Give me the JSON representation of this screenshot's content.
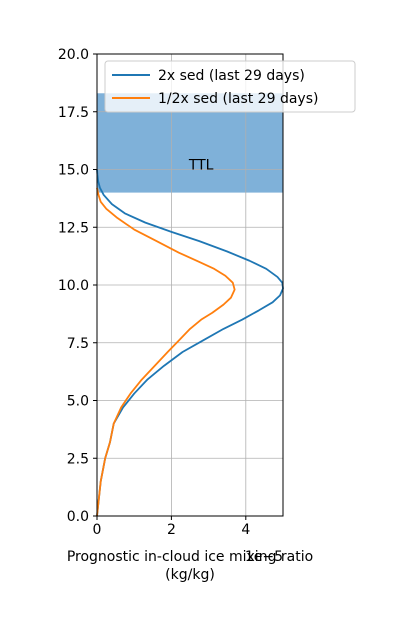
{
  "chart_data": {
    "type": "line",
    "xlabel": "Prognostic in-cloud ice mixing ratio\n(kg/kg)",
    "ylabel": "",
    "x_offset_label": "1e−5",
    "xlim": [
      0,
      5
    ],
    "ylim": [
      0,
      20
    ],
    "xticks": [
      0,
      2,
      4
    ],
    "yticks": [
      0.0,
      2.5,
      5.0,
      7.5,
      10.0,
      12.5,
      15.0,
      17.5,
      20.0
    ],
    "xtick_labels": [
      "0",
      "2",
      "4"
    ],
    "ytick_labels": [
      "0.0",
      "2.5",
      "5.0",
      "7.5",
      "10.0",
      "12.5",
      "15.0",
      "17.5",
      "20.0"
    ],
    "grid": true,
    "legend_position": "top-right",
    "shaded_region": {
      "label": "TTL",
      "y_range": [
        14.0,
        18.3
      ],
      "color": "#7fb1d9"
    },
    "series": [
      {
        "name": "2x sed (last 29 days)",
        "color": "#1f77b4",
        "x": [
          0.0,
          0.1,
          0.22,
          0.35,
          0.45,
          0.7,
          1.0,
          1.35,
          1.8,
          2.3,
          2.85,
          3.4,
          3.9,
          4.35,
          4.72,
          4.92,
          5.0,
          4.98,
          4.85,
          4.55,
          4.1,
          3.5,
          2.75,
          2.0,
          1.3,
          0.75,
          0.4,
          0.18,
          0.08,
          0.03,
          0.01,
          0.0
        ],
        "y": [
          0.0,
          1.5,
          2.5,
          3.2,
          4.0,
          4.7,
          5.3,
          5.9,
          6.5,
          7.1,
          7.6,
          8.1,
          8.5,
          8.9,
          9.25,
          9.55,
          9.85,
          10.1,
          10.35,
          10.7,
          11.05,
          11.45,
          11.9,
          12.3,
          12.7,
          13.1,
          13.5,
          13.9,
          14.2,
          14.5,
          14.8,
          15.0
        ]
      },
      {
        "name": "1/2x sed (last 29 days)",
        "color": "#ff7f0e",
        "x": [
          0.0,
          0.1,
          0.22,
          0.35,
          0.45,
          0.65,
          0.9,
          1.2,
          1.55,
          1.9,
          2.2,
          2.5,
          2.8,
          3.1,
          3.4,
          3.6,
          3.7,
          3.65,
          3.45,
          3.15,
          2.75,
          2.2,
          1.6,
          1.0,
          0.55,
          0.25,
          0.1,
          0.04,
          0.0
        ],
        "y": [
          0.0,
          1.5,
          2.5,
          3.2,
          4.0,
          4.7,
          5.3,
          5.9,
          6.5,
          7.1,
          7.6,
          8.1,
          8.5,
          8.8,
          9.15,
          9.45,
          9.8,
          10.1,
          10.4,
          10.7,
          11.0,
          11.4,
          11.9,
          12.4,
          12.9,
          13.3,
          13.6,
          13.9,
          14.2
        ]
      }
    ]
  }
}
